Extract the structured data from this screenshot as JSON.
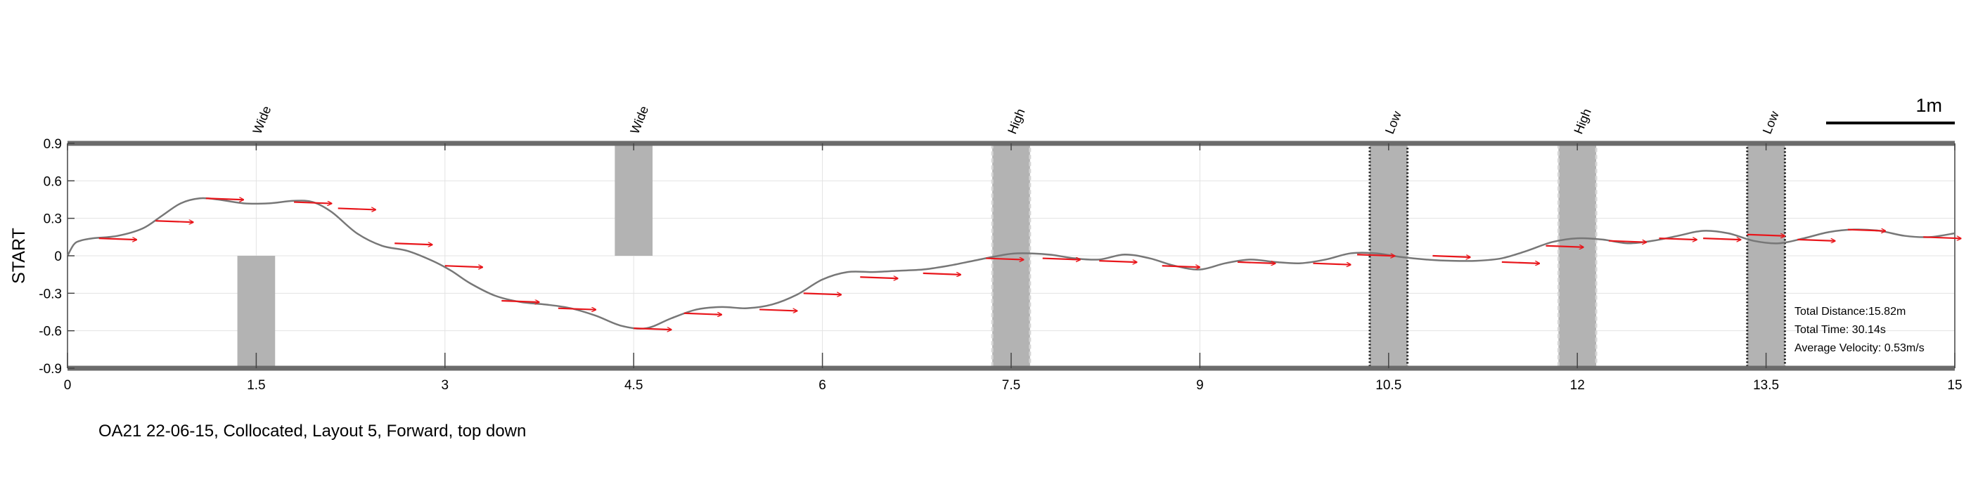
{
  "caption": "OA21 22-06-15, Collocated, Layout 5, Forward, top down",
  "chart_data": {
    "type": "line",
    "ylabel": "START",
    "xlim": [
      0,
      15
    ],
    "ylim": [
      -0.9,
      0.9
    ],
    "xticks": [
      0,
      1.5,
      3,
      4.5,
      6,
      7.5,
      9,
      10.5,
      12,
      13.5,
      15
    ],
    "xtick_labels": [
      "0",
      "1.5",
      "3",
      "4.5",
      "6",
      "7.5",
      "9",
      "10.5",
      "12",
      "13.5",
      "15"
    ],
    "yticks": [
      0.9,
      0.6,
      0.3,
      0,
      -0.3,
      -0.6,
      -0.9
    ],
    "ytick_labels": [
      "0.9",
      "0.6",
      "0.3",
      "0",
      "-0.3",
      "-0.6",
      "-0.9"
    ],
    "grid": true,
    "colors": {
      "path": "#777777",
      "arrows": "#e8161b",
      "obstacle": "#b3b3b3",
      "frame": "#6b6b6b"
    },
    "scale_bar": {
      "label": "1m",
      "length_m": 1.0
    },
    "obstacles": [
      {
        "label": "Wide",
        "x0": 1.35,
        "x1": 1.65,
        "y0": -0.9,
        "y1": 0.0,
        "border": "none"
      },
      {
        "label": "Wide",
        "x0": 4.35,
        "x1": 4.65,
        "y0": 0.0,
        "y1": 0.9,
        "border": "none"
      },
      {
        "label": "High",
        "x0": 7.35,
        "x1": 7.65,
        "y0": -0.9,
        "y1": 0.9,
        "border": "dashed-light"
      },
      {
        "label": "Low",
        "x0": 10.35,
        "x1": 10.65,
        "y0": -0.9,
        "y1": 0.9,
        "border": "dotted-dark"
      },
      {
        "label": "High",
        "x0": 11.85,
        "x1": 12.15,
        "y0": -0.9,
        "y1": 0.9,
        "border": "dashed-light"
      },
      {
        "label": "Low",
        "x0": 13.35,
        "x1": 13.65,
        "y0": -0.9,
        "y1": 0.9,
        "border": "dotted-dark"
      }
    ],
    "path": {
      "x": [
        0,
        0.05,
        0.1,
        0.2,
        0.4,
        0.6,
        0.75,
        0.9,
        1.05,
        1.2,
        1.4,
        1.6,
        1.8,
        1.95,
        2.1,
        2.3,
        2.5,
        2.7,
        2.9,
        3.05,
        3.2,
        3.4,
        3.6,
        3.8,
        4.0,
        4.2,
        4.4,
        4.6,
        4.8,
        5.0,
        5.2,
        5.4,
        5.6,
        5.8,
        6.0,
        6.2,
        6.4,
        6.6,
        6.8,
        7.0,
        7.2,
        7.4,
        7.55,
        7.8,
        8.0,
        8.2,
        8.4,
        8.6,
        8.8,
        9.0,
        9.2,
        9.4,
        9.6,
        9.8,
        10.0,
        10.2,
        10.4,
        10.6,
        10.8,
        11.0,
        11.2,
        11.4,
        11.6,
        11.8,
        12.0,
        12.2,
        12.4,
        12.6,
        12.8,
        13.0,
        13.2,
        13.4,
        13.6,
        13.8,
        14.0,
        14.2,
        14.4,
        14.6,
        14.8,
        15.0
      ],
      "y": [
        0.0,
        0.09,
        0.12,
        0.14,
        0.16,
        0.22,
        0.32,
        0.42,
        0.46,
        0.45,
        0.42,
        0.42,
        0.44,
        0.43,
        0.35,
        0.18,
        0.08,
        0.04,
        -0.04,
        -0.12,
        -0.22,
        -0.32,
        -0.37,
        -0.39,
        -0.42,
        -0.48,
        -0.56,
        -0.58,
        -0.5,
        -0.43,
        -0.41,
        -0.42,
        -0.39,
        -0.31,
        -0.19,
        -0.13,
        -0.13,
        -0.12,
        -0.11,
        -0.08,
        -0.04,
        0.0,
        0.02,
        0.01,
        -0.02,
        -0.03,
        0.01,
        -0.02,
        -0.08,
        -0.11,
        -0.06,
        -0.03,
        -0.05,
        -0.06,
        -0.03,
        0.02,
        0.02,
        -0.01,
        -0.03,
        -0.04,
        -0.04,
        -0.02,
        0.04,
        0.11,
        0.14,
        0.13,
        0.1,
        0.12,
        0.16,
        0.2,
        0.18,
        0.12,
        0.1,
        0.14,
        0.19,
        0.21,
        0.2,
        0.16,
        0.15,
        0.18
      ]
    },
    "arrows": {
      "x": [
        0.25,
        0.7,
        1.1,
        1.8,
        2.15,
        2.6,
        3.0,
        3.45,
        3.9,
        4.5,
        4.9,
        5.5,
        5.85,
        6.3,
        6.8,
        7.3,
        7.75,
        8.2,
        8.7,
        9.3,
        9.9,
        10.25,
        10.85,
        11.4,
        11.75,
        12.25,
        12.65,
        13.0,
        13.35,
        13.75,
        14.15,
        14.75
      ],
      "y": [
        0.14,
        0.28,
        0.46,
        0.43,
        0.38,
        0.1,
        -0.08,
        -0.36,
        -0.42,
        -0.58,
        -0.46,
        -0.43,
        -0.3,
        -0.17,
        -0.14,
        -0.02,
        -0.02,
        -0.04,
        -0.08,
        -0.05,
        -0.06,
        0.01,
        0.0,
        -0.05,
        0.08,
        0.12,
        0.14,
        0.14,
        0.17,
        0.13,
        0.21,
        0.15
      ],
      "dx": 0.3
    },
    "stats": [
      {
        "label": "Total Distance:",
        "value": "15.82m"
      },
      {
        "label": "Total Time: ",
        "value": "30.14s"
      },
      {
        "label": "Average Velocity: ",
        "value": "0.53m/s"
      }
    ]
  }
}
